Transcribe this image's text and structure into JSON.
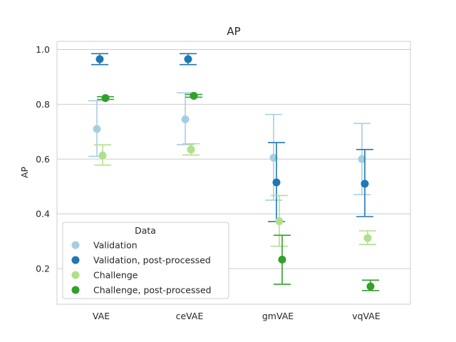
{
  "chart_data": {
    "type": "pointplot-errorbar",
    "title": "AP",
    "xlabel": "",
    "ylabel": "AP",
    "categories": [
      "VAE",
      "ceVAE",
      "gmVAE",
      "vqVAE"
    ],
    "ylim": [
      0.07,
      1.03
    ],
    "yticks": [
      0.2,
      0.4,
      0.6,
      0.8,
      1.0
    ],
    "ytick_labels": [
      "0.2",
      "0.4",
      "0.6",
      "0.8",
      "1.0"
    ],
    "grid": true,
    "legend": {
      "title": "Data",
      "placement": "lower-left"
    },
    "series": [
      {
        "name": "Validation",
        "color": "#a6cee3",
        "values": [
          0.71,
          0.745,
          0.605,
          0.6
        ],
        "err_low": [
          0.61,
          0.653,
          0.45,
          0.47
        ],
        "err_high": [
          0.813,
          0.842,
          0.763,
          0.73
        ]
      },
      {
        "name": "Validation, post-processed",
        "color": "#1f78b4",
        "values": [
          0.965,
          0.965,
          0.515,
          0.51
        ],
        "err_low": [
          0.945,
          0.945,
          0.372,
          0.39
        ],
        "err_high": [
          0.985,
          0.985,
          0.66,
          0.635
        ]
      },
      {
        "name": "Challenge",
        "color": "#b2df8a",
        "values": [
          0.613,
          0.635,
          0.373,
          0.312
        ],
        "err_low": [
          0.578,
          0.615,
          0.282,
          0.288
        ],
        "err_high": [
          0.652,
          0.656,
          0.467,
          0.338
        ]
      },
      {
        "name": "Challenge, post-processed",
        "color": "#33a02c",
        "values": [
          0.823,
          0.831,
          0.233,
          0.135
        ],
        "err_low": [
          0.818,
          0.826,
          0.143,
          0.12
        ],
        "err_high": [
          0.828,
          0.836,
          0.322,
          0.158
        ]
      }
    ]
  }
}
